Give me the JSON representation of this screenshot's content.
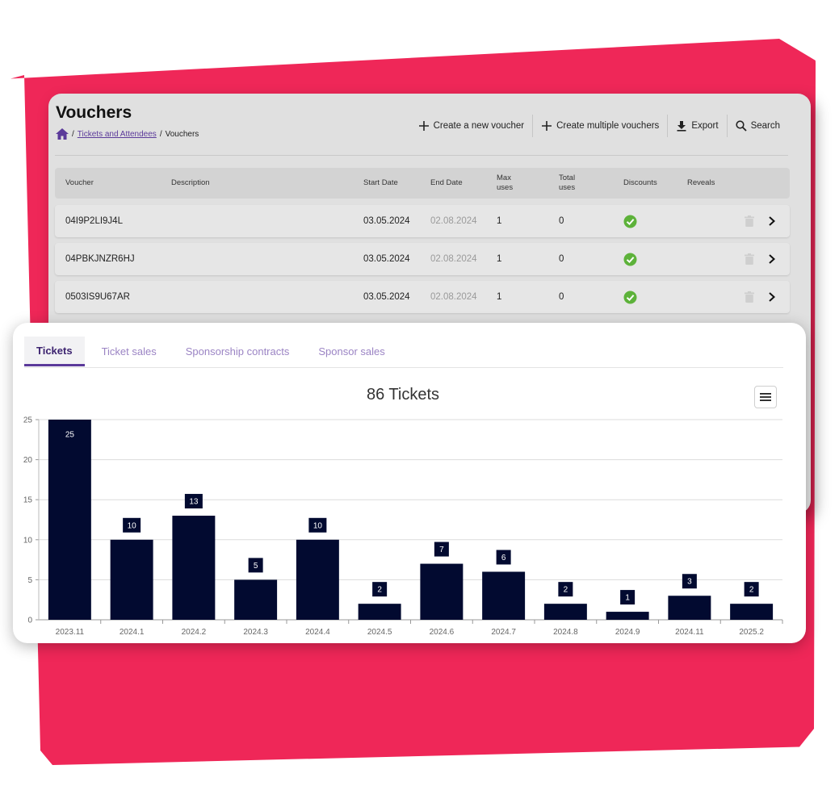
{
  "vouchers": {
    "title": "Vouchers",
    "breadcrumb": {
      "link": "Tickets and Attendees",
      "sep1": "/",
      "sep2": "/",
      "current": "Vouchers"
    },
    "actions": {
      "create": "Create a new voucher",
      "create_multiple": "Create multiple vouchers",
      "export": "Export",
      "search": "Search"
    },
    "columns": {
      "voucher": "Voucher",
      "description": "Description",
      "start_date": "Start Date",
      "end_date": "End Date",
      "max_uses_1": "Max",
      "max_uses_2": "uses",
      "total_uses_1": "Total",
      "total_uses_2": "uses",
      "discounts": "Discounts",
      "reveals": "Reveals"
    },
    "rows": [
      {
        "code": "04I9P2LI9J4L",
        "description": "",
        "start": "03.05.2024",
        "end": "02.08.2024",
        "max": "1",
        "total": "0"
      },
      {
        "code": "04PBKJNZR6HJ",
        "description": "",
        "start": "03.05.2024",
        "end": "02.08.2024",
        "max": "1",
        "total": "0"
      },
      {
        "code": "0503IS9U67AR",
        "description": "",
        "start": "03.05.2024",
        "end": "02.08.2024",
        "max": "1",
        "total": "0"
      }
    ]
  },
  "tabs": {
    "tickets": "Tickets",
    "ticket_sales": "Ticket sales",
    "sponsorship_contracts": "Sponsorship contracts",
    "sponsor_sales": "Sponsor sales"
  },
  "colors": {
    "accent": "#5b3a9a",
    "bar": "#020a30",
    "background": "#ef2758",
    "check": "#5db23a"
  },
  "chart_data": {
    "type": "bar",
    "title": "86 Tickets",
    "categories": [
      "2023.11",
      "2024.1",
      "2024.2",
      "2024.3",
      "2024.4",
      "2024.5",
      "2024.6",
      "2024.7",
      "2024.8",
      "2024.9",
      "2024.11",
      "2025.2"
    ],
    "values": [
      25,
      10,
      13,
      5,
      10,
      2,
      7,
      6,
      2,
      1,
      3,
      2
    ],
    "ylim": [
      0,
      25
    ],
    "yticks": [
      0,
      5,
      10,
      15,
      20,
      25
    ],
    "xlabel": "",
    "ylabel": "",
    "grid": true,
    "data_labels": true
  }
}
